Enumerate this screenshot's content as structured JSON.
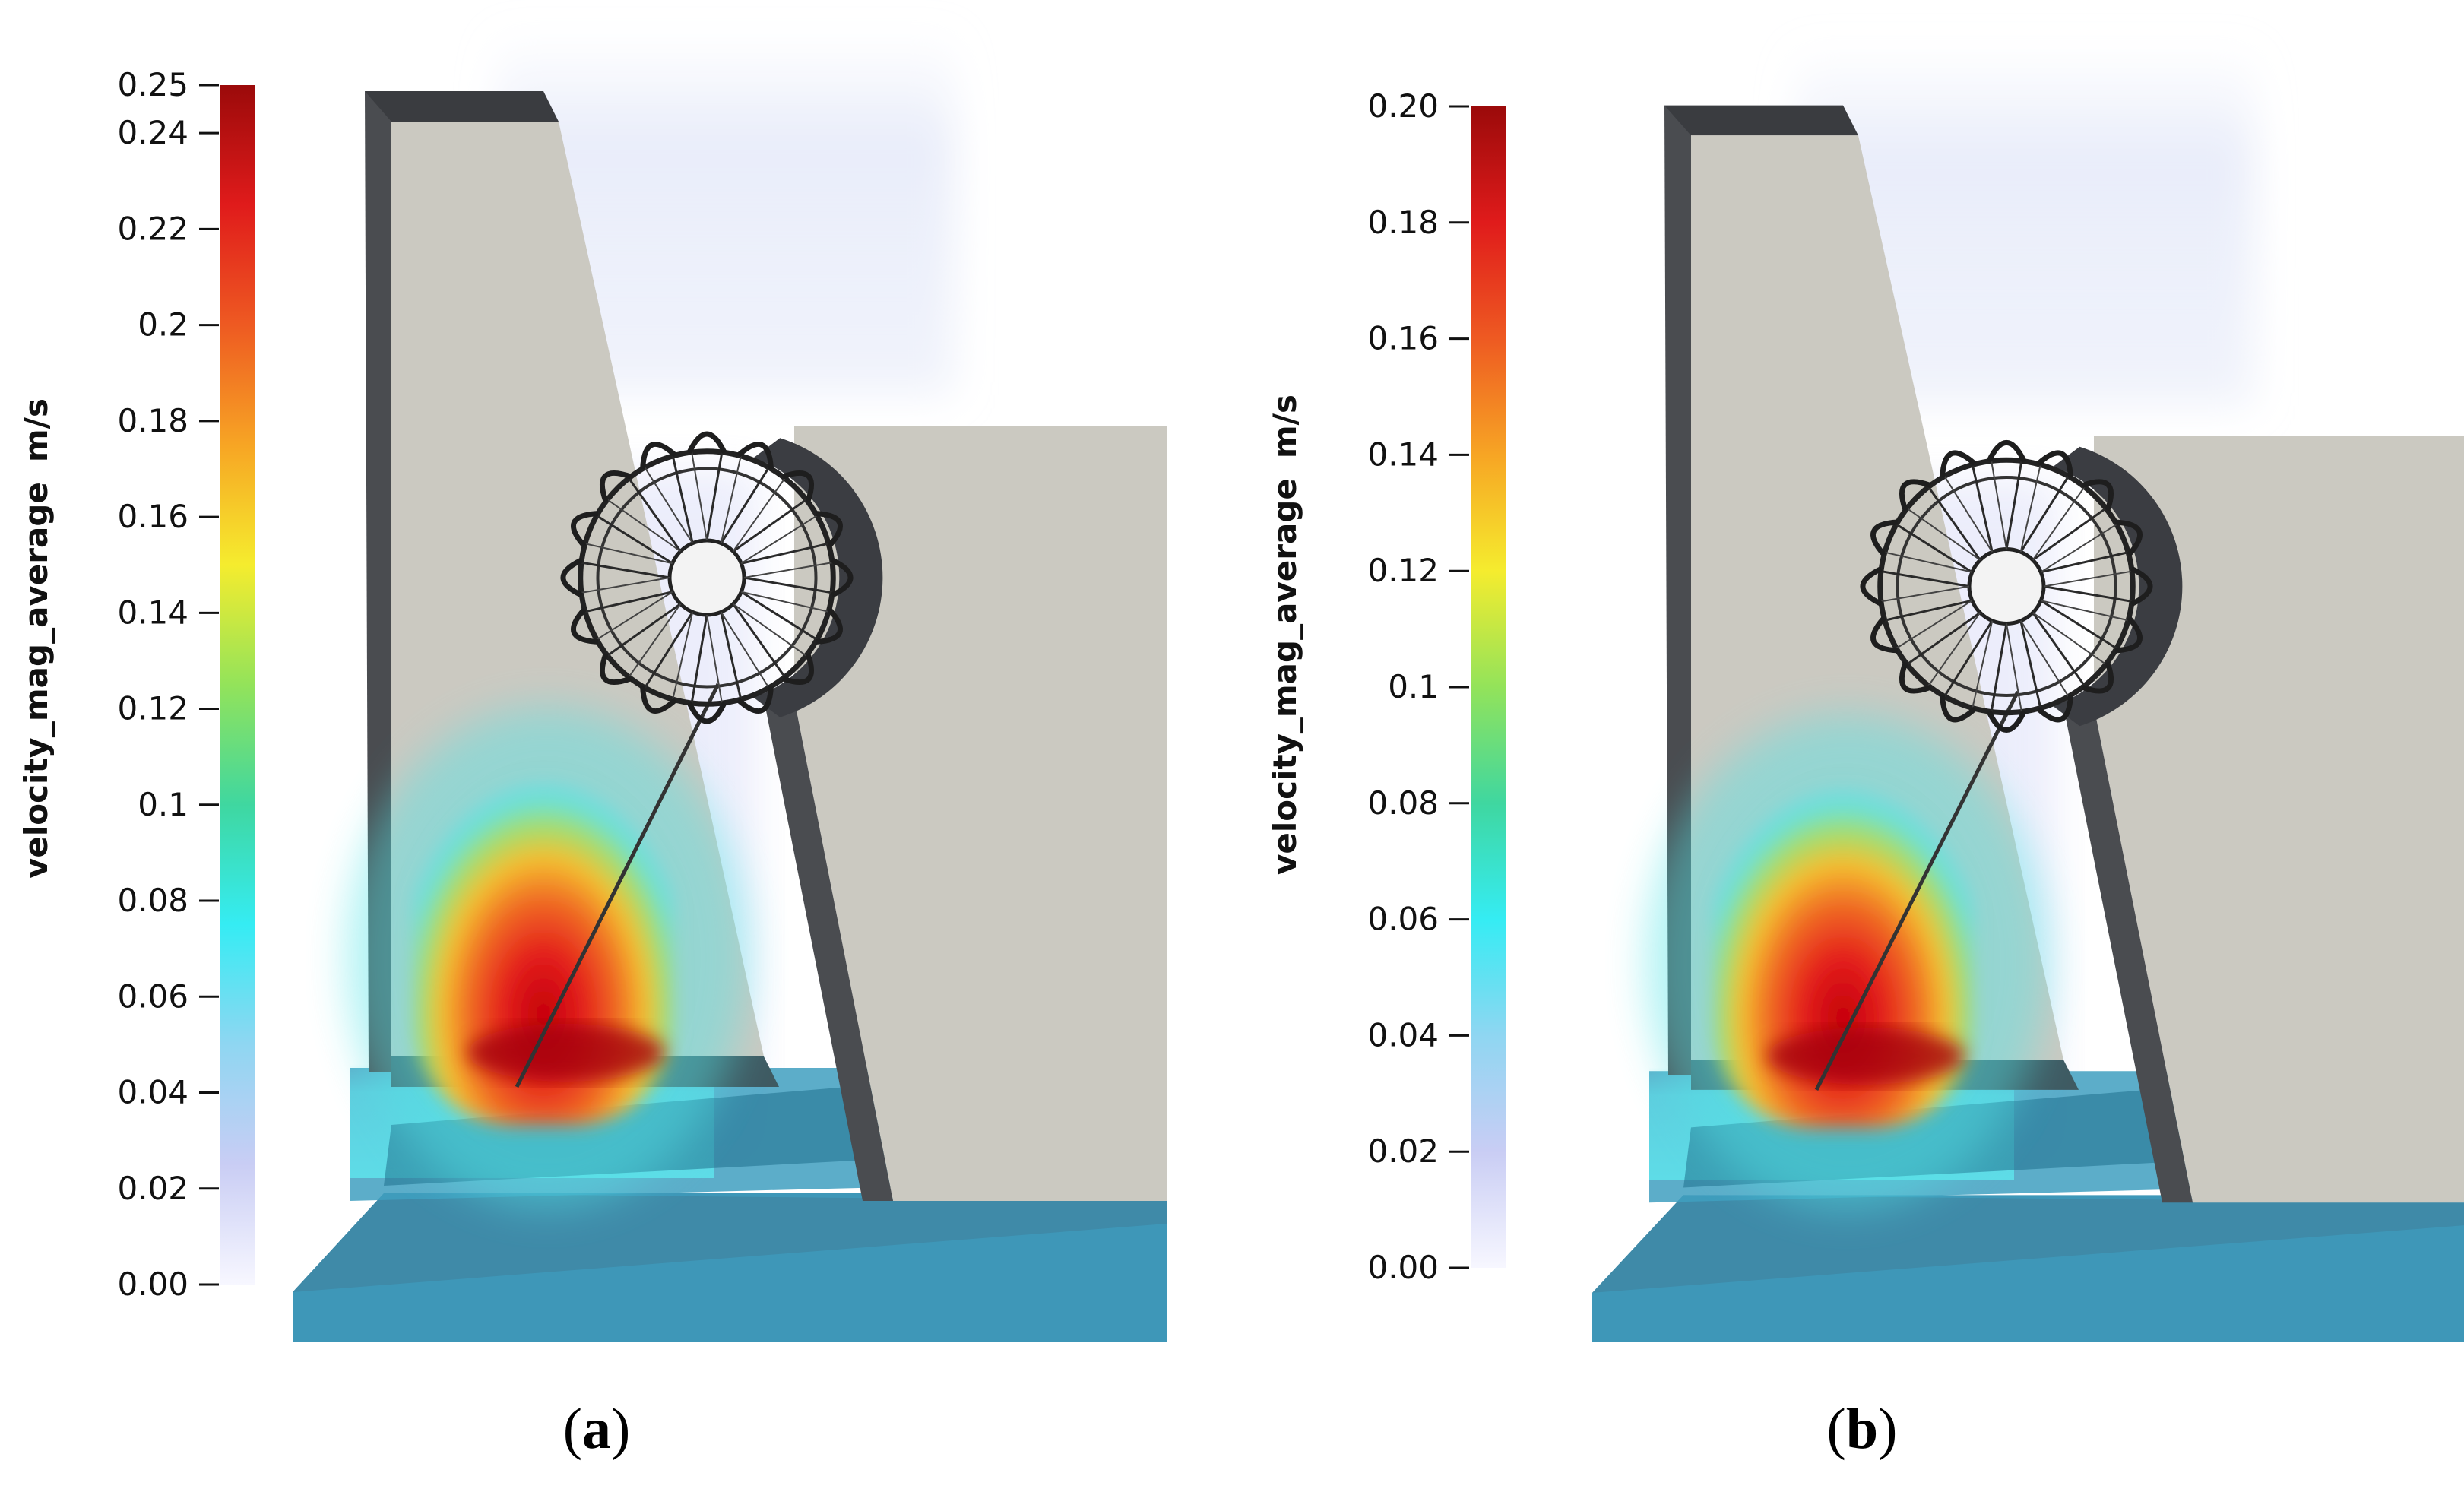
{
  "colormap": {
    "stops": [
      "#f7f7ff",
      "#c9cdf4",
      "#8fd6f2",
      "#35ecf3",
      "#3fd7a0",
      "#93e35a",
      "#f5ec2e",
      "#f7a524",
      "#ee5a22",
      "#e01b1b",
      "#9b0a0a"
    ],
    "water_color": "#3e97b8",
    "wall_color": "#cbc9c1",
    "edge_color": "#4a4c50"
  },
  "panels": [
    {
      "id": "a",
      "label": "a",
      "colorbar": {
        "title": "velocity_mag_average",
        "unit": "m/s",
        "min": 0.0,
        "max": 0.25,
        "ticks": [
          {
            "value": 0.25,
            "label": "0.25"
          },
          {
            "value": 0.24,
            "label": "0.24"
          },
          {
            "value": 0.22,
            "label": "0.22"
          },
          {
            "value": 0.2,
            "label": "0.2"
          },
          {
            "value": 0.18,
            "label": "0.18"
          },
          {
            "value": 0.16,
            "label": "0.16"
          },
          {
            "value": 0.14,
            "label": "0.14"
          },
          {
            "value": 0.12,
            "label": "0.12"
          },
          {
            "value": 0.1,
            "label": "0.1"
          },
          {
            "value": 0.08,
            "label": "0.08"
          },
          {
            "value": 0.06,
            "label": "0.06"
          },
          {
            "value": 0.04,
            "label": "0.04"
          },
          {
            "value": 0.02,
            "label": "0.02"
          },
          {
            "value": 0.0,
            "label": "0.00"
          }
        ]
      }
    },
    {
      "id": "b",
      "label": "b",
      "colorbar": {
        "title": "velocity_mag_average",
        "unit": "m/s",
        "min": 0.0,
        "max": 0.2,
        "ticks": [
          {
            "value": 0.2,
            "label": "0.20"
          },
          {
            "value": 0.18,
            "label": "0.18"
          },
          {
            "value": 0.16,
            "label": "0.16"
          },
          {
            "value": 0.14,
            "label": "0.14"
          },
          {
            "value": 0.12,
            "label": "0.12"
          },
          {
            "value": 0.1,
            "label": "0.1"
          },
          {
            "value": 0.08,
            "label": "0.08"
          },
          {
            "value": 0.06,
            "label": "0.06"
          },
          {
            "value": 0.04,
            "label": "0.04"
          },
          {
            "value": 0.02,
            "label": "0.02"
          },
          {
            "value": 0.0,
            "label": "0.00"
          }
        ]
      }
    }
  ]
}
